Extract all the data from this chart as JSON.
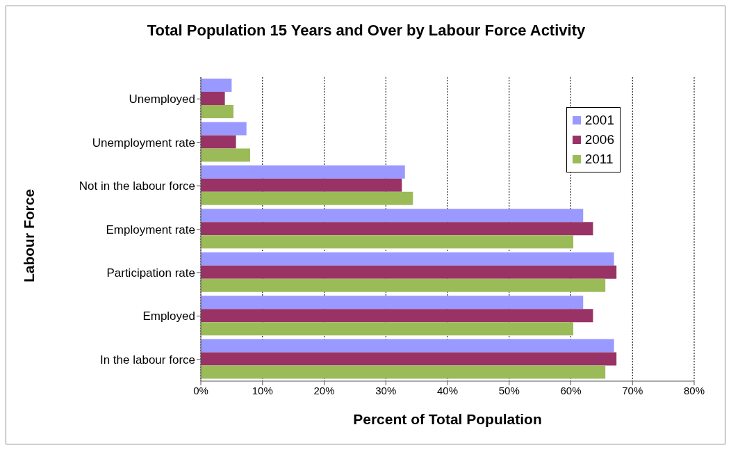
{
  "chart_data": {
    "type": "bar",
    "orientation": "horizontal",
    "title": "Total Population 15 Years and Over by Labour Force Activity",
    "xlabel": "Percent of Total Population",
    "ylabel": "Labour Force",
    "categories": [
      "Unemployed",
      "Unemployment rate",
      "Not in the labour force",
      "Employment rate",
      "Participation rate",
      "Employed",
      "In the labour force"
    ],
    "series": [
      {
        "name": "2001",
        "color": "#9999ff",
        "values": [
          5.0,
          7.4,
          33.1,
          62.0,
          67.0,
          62.0,
          67.0
        ]
      },
      {
        "name": "2006",
        "color": "#993366",
        "values": [
          3.9,
          5.7,
          32.6,
          63.6,
          67.4,
          63.6,
          67.4
        ]
      },
      {
        "name": "2011",
        "color": "#9bbb59",
        "values": [
          5.3,
          8.0,
          34.4,
          60.4,
          65.6,
          60.4,
          65.6
        ]
      }
    ],
    "xlim": [
      0,
      80
    ],
    "xticks": [
      {
        "value": 0,
        "label": "0%"
      },
      {
        "value": 10,
        "label": "10%"
      },
      {
        "value": 20,
        "label": "20%"
      },
      {
        "value": 30,
        "label": "30%"
      },
      {
        "value": 40,
        "label": "40%"
      },
      {
        "value": 50,
        "label": "50%"
      },
      {
        "value": 60,
        "label": "60%"
      },
      {
        "value": 70,
        "label": "70%"
      },
      {
        "value": 80,
        "label": "80%"
      }
    ],
    "grid": "x",
    "legend": "top right"
  }
}
